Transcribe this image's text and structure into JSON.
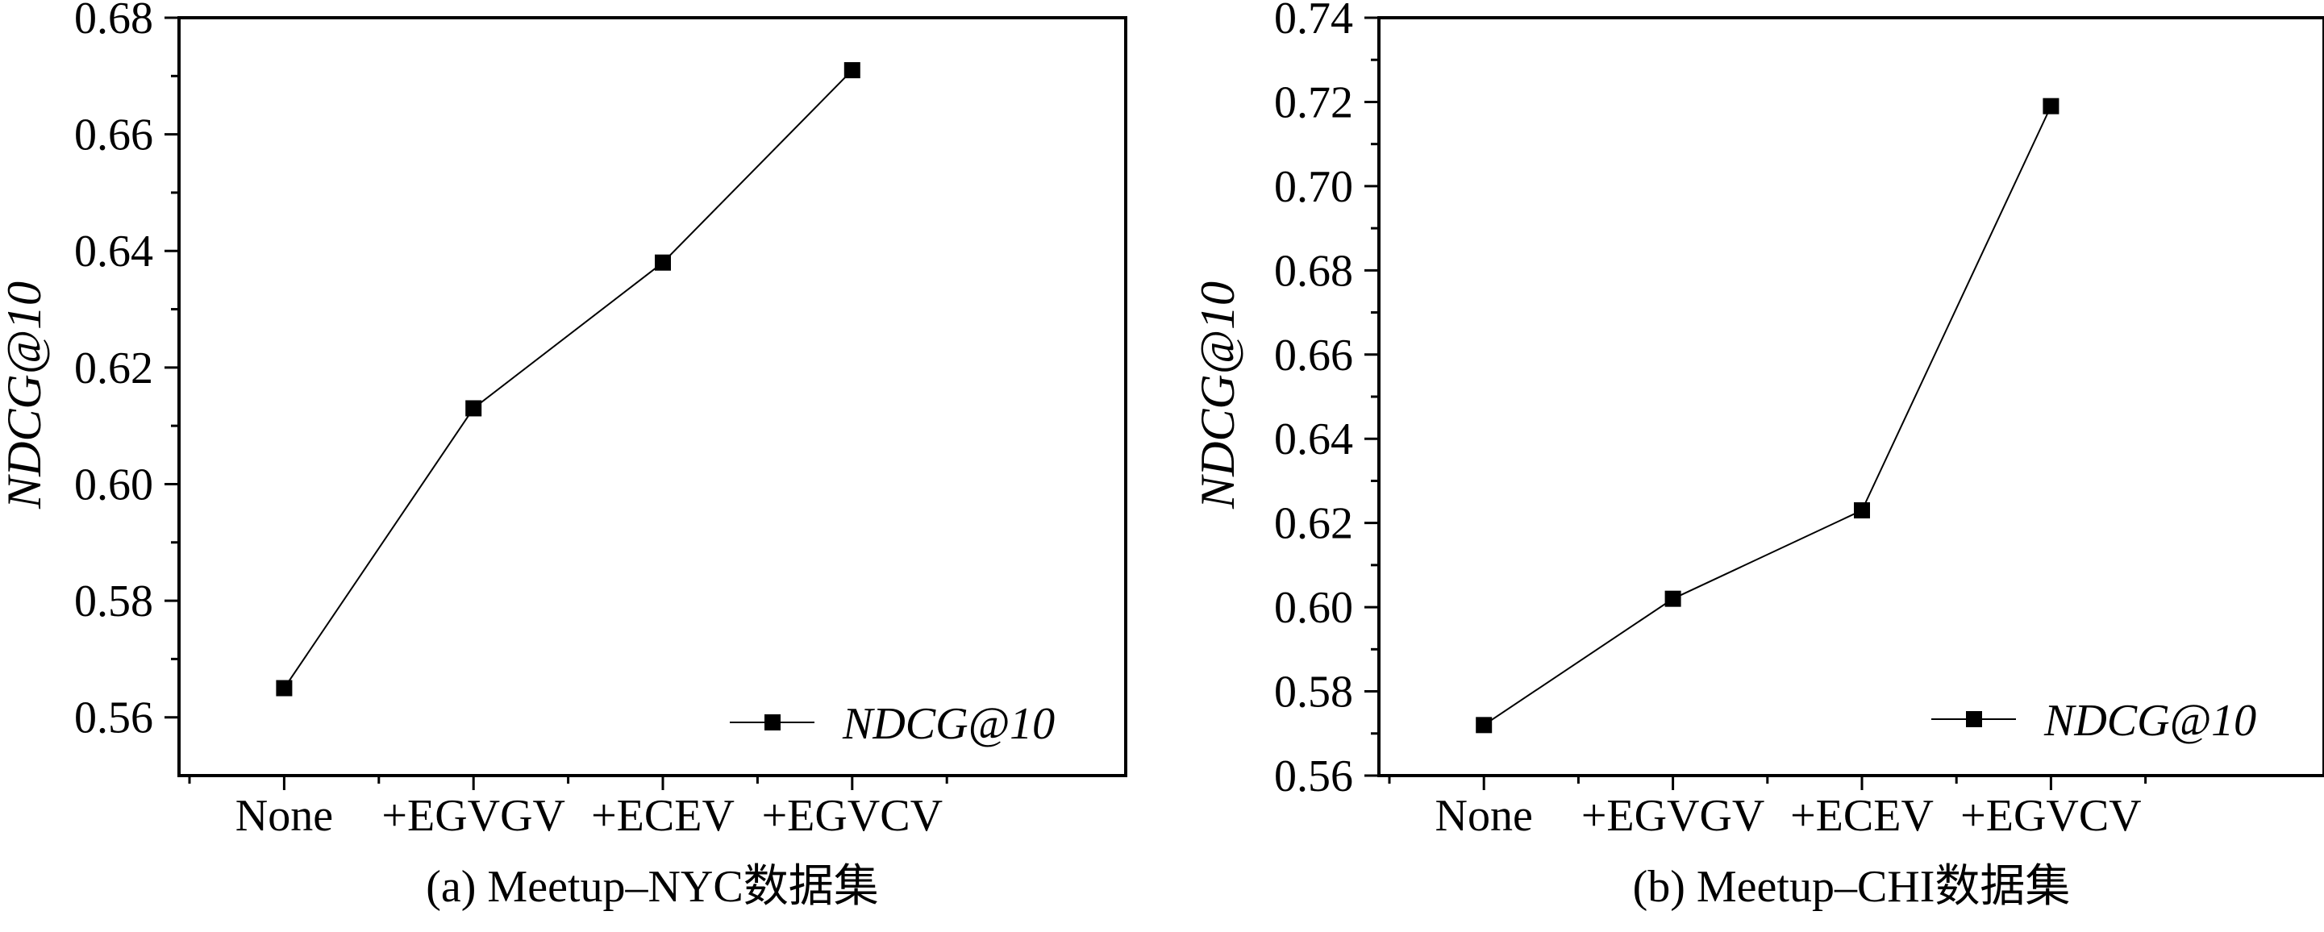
{
  "chart_data": [
    {
      "type": "line",
      "categories": [
        "None",
        "+EGVGV",
        "+ECEV",
        "+EGVCV"
      ],
      "series": [
        {
          "name": "NDCG@10",
          "values": [
            0.565,
            0.613,
            0.638,
            0.671
          ]
        }
      ],
      "ylabel": "NDCG@10",
      "xlabel": "",
      "ylim": [
        0.55,
        0.68
      ],
      "yticks": [
        "0.56",
        "0.58",
        "0.60",
        "0.62",
        "0.64",
        "0.66",
        "0.68"
      ],
      "caption": "(a) Meetup–NYC数据集",
      "legend_position": "bottom-right",
      "grid": false
    },
    {
      "type": "line",
      "categories": [
        "None",
        "+EGVGV",
        "+ECEV",
        "+EGVCV"
      ],
      "series": [
        {
          "name": "NDCG@10",
          "values": [
            0.572,
            0.602,
            0.623,
            0.719
          ]
        }
      ],
      "ylabel": "NDCG@10",
      "xlabel": "",
      "ylim": [
        0.56,
        0.74
      ],
      "yticks": [
        "0.56",
        "0.58",
        "0.60",
        "0.62",
        "0.64",
        "0.66",
        "0.68",
        "0.70",
        "0.72",
        "0.74"
      ],
      "caption": "(b) Meetup–CHI数据集",
      "legend_position": "bottom-right",
      "grid": false
    }
  ]
}
